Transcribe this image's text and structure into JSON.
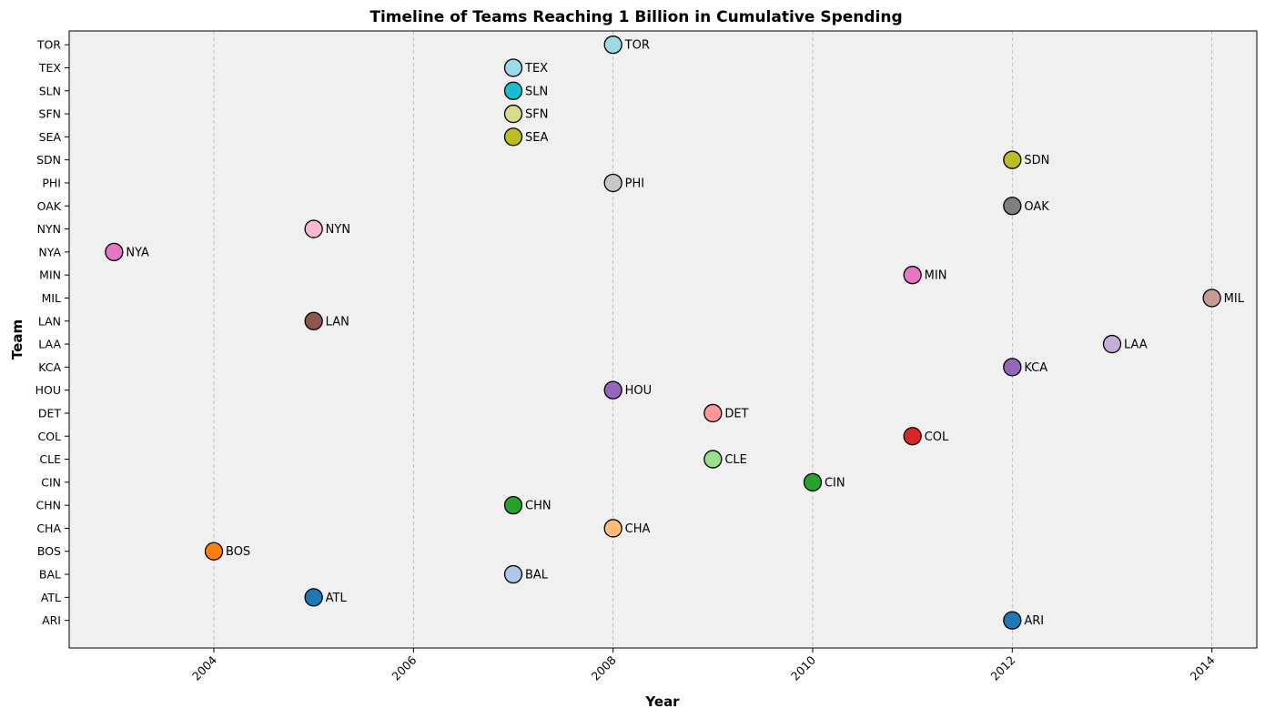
{
  "chart_data": {
    "type": "scatter",
    "title": "Timeline of Teams Reaching 1 Billion in Cumulative Spending",
    "xlabel": "Year",
    "ylabel": "Team",
    "xlim": [
      2002.55,
      2014.45
    ],
    "x_ticks": [
      2004,
      2006,
      2008,
      2010,
      2012,
      2014
    ],
    "grid": "x-dashed",
    "background": "#f0f0f0",
    "categories": [
      "ARI",
      "ATL",
      "BAL",
      "BOS",
      "CHA",
      "CHN",
      "CIN",
      "CLE",
      "COL",
      "DET",
      "HOU",
      "KCA",
      "LAA",
      "LAN",
      "MIL",
      "MIN",
      "NYA",
      "NYN",
      "OAK",
      "PHI",
      "SDN",
      "SEA",
      "SFN",
      "SLN",
      "TEX",
      "TOR"
    ],
    "points": [
      {
        "team": "ARI",
        "year": 2012,
        "color": "#1f77b4"
      },
      {
        "team": "ATL",
        "year": 2005,
        "color": "#1f77b4"
      },
      {
        "team": "BAL",
        "year": 2007,
        "color": "#aec7e8"
      },
      {
        "team": "BOS",
        "year": 2004,
        "color": "#ff7f0e"
      },
      {
        "team": "CHA",
        "year": 2008,
        "color": "#ffbb78"
      },
      {
        "team": "CHN",
        "year": 2007,
        "color": "#2ca02c"
      },
      {
        "team": "CIN",
        "year": 2010,
        "color": "#2ca02c"
      },
      {
        "team": "CLE",
        "year": 2009,
        "color": "#98df8a"
      },
      {
        "team": "COL",
        "year": 2011,
        "color": "#d62728"
      },
      {
        "team": "DET",
        "year": 2009,
        "color": "#ff9896"
      },
      {
        "team": "HOU",
        "year": 2008,
        "color": "#9467bd"
      },
      {
        "team": "KCA",
        "year": 2012,
        "color": "#9467bd"
      },
      {
        "team": "LAA",
        "year": 2013,
        "color": "#c5b0d5"
      },
      {
        "team": "LAN",
        "year": 2005,
        "color": "#8c564b"
      },
      {
        "team": "MIL",
        "year": 2014,
        "color": "#c49c94"
      },
      {
        "team": "MIN",
        "year": 2011,
        "color": "#e377c2"
      },
      {
        "team": "NYA",
        "year": 2003,
        "color": "#e377c2"
      },
      {
        "team": "NYN",
        "year": 2005,
        "color": "#f7b6d2"
      },
      {
        "team": "OAK",
        "year": 2012,
        "color": "#7f7f7f"
      },
      {
        "team": "PHI",
        "year": 2008,
        "color": "#c7c7c7"
      },
      {
        "team": "SDN",
        "year": 2012,
        "color": "#bcbd22"
      },
      {
        "team": "SEA",
        "year": 2007,
        "color": "#bcbd22"
      },
      {
        "team": "SFN",
        "year": 2007,
        "color": "#dbdb8d"
      },
      {
        "team": "SLN",
        "year": 2007,
        "color": "#17becf"
      },
      {
        "team": "TEX",
        "year": 2007,
        "color": "#9edae5"
      },
      {
        "team": "TOR",
        "year": 2008,
        "color": "#9edae5"
      }
    ]
  }
}
